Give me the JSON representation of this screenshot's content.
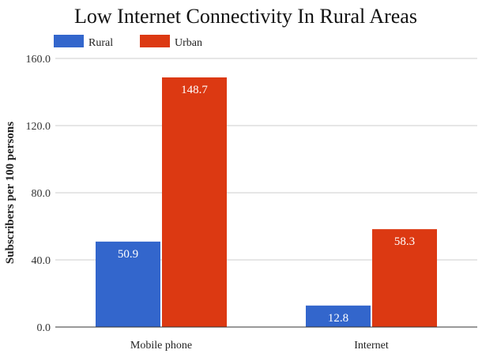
{
  "chart_data": {
    "type": "bar",
    "title": "Low Internet Connectivity In Rural Areas",
    "xlabel": "",
    "ylabel": "Subscribers per 100 persons",
    "categories": [
      "Mobile phone",
      "Internet"
    ],
    "series": [
      {
        "name": "Rural",
        "color": "#3366cc",
        "values": [
          50.9,
          12.8
        ],
        "labels": [
          "50.9",
          "12.8"
        ]
      },
      {
        "name": "Urban",
        "color": "#dc3912",
        "values": [
          148.7,
          58.3
        ],
        "labels": [
          "148.7",
          "58.3"
        ]
      }
    ],
    "ylim": [
      0,
      160
    ],
    "yticks": [
      0,
      40,
      80,
      120,
      160
    ],
    "ytick_labels": [
      "0.0",
      "40.0",
      "80.0",
      "120.0",
      "160.0"
    ],
    "grid": true,
    "legend": "top-left"
  }
}
